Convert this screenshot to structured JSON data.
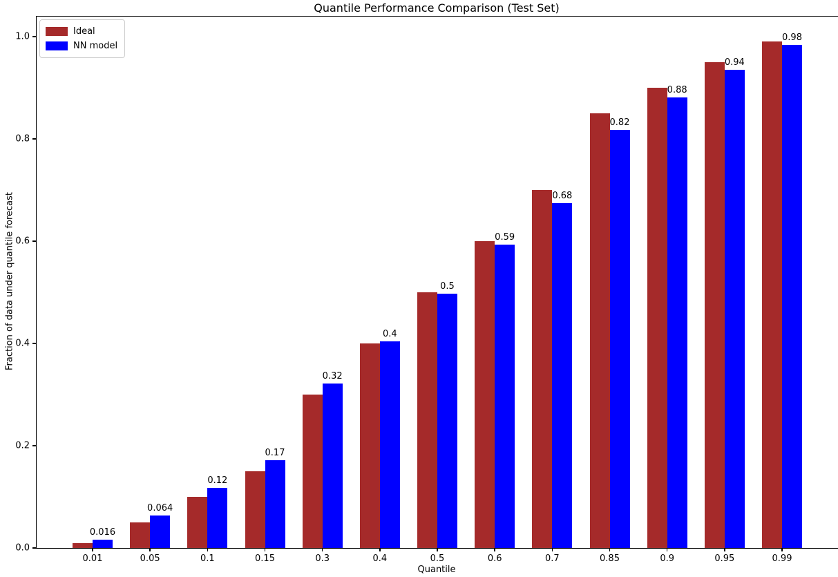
{
  "chart_data": {
    "type": "bar",
    "title": "Quantile Performance Comparison (Test Set)",
    "xlabel": "Quantile",
    "ylabel": "Fraction of data under quantile forecast",
    "categories": [
      "0.01",
      "0.05",
      "0.1",
      "0.15",
      "0.3",
      "0.4",
      "0.5",
      "0.6",
      "0.7",
      "0.85",
      "0.9",
      "0.95",
      "0.99"
    ],
    "series": [
      {
        "name": "Ideal",
        "color": "#a52a2a",
        "values": [
          0.01,
          0.05,
          0.1,
          0.15,
          0.3,
          0.4,
          0.5,
          0.6,
          0.7,
          0.85,
          0.9,
          0.95,
          0.99
        ]
      },
      {
        "name": "NN model",
        "color": "#0000ff",
        "values": [
          0.016,
          0.064,
          0.118,
          0.171,
          0.322,
          0.404,
          0.497,
          0.593,
          0.675,
          0.818,
          0.881,
          0.935,
          0.984
        ],
        "bar_labels": [
          "0.016",
          "0.064",
          "0.12",
          "0.17",
          "0.32",
          "0.4",
          "0.5",
          "0.59",
          "0.68",
          "0.82",
          "0.88",
          "0.94",
          "0.98"
        ]
      }
    ],
    "yticks": [
      "0.0",
      "0.2",
      "0.4",
      "0.6",
      "0.8",
      "1.0"
    ],
    "ylim": [
      0.0,
      1.04
    ],
    "legend_position": "upper left",
    "grid": false,
    "background_color": "#ffffff",
    "text_color": "#000000"
  }
}
